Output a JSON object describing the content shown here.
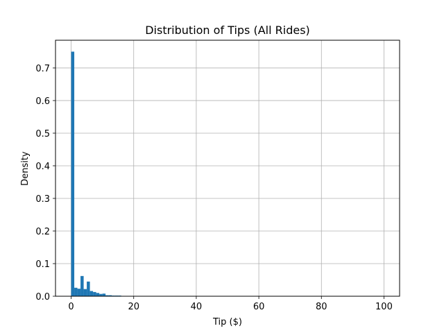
{
  "chart_data": {
    "type": "bar",
    "subtype": "histogram",
    "title": "Distribution of Tips (All Rides)",
    "xlabel": "Tip ($)",
    "ylabel": "Density",
    "xlim": [
      -5,
      105
    ],
    "ylim": [
      0,
      0.785
    ],
    "x_ticks": [
      0,
      20,
      40,
      60,
      80,
      100
    ],
    "y_ticks": [
      0.0,
      0.1,
      0.2,
      0.3,
      0.4,
      0.5,
      0.6,
      0.7
    ],
    "x_tick_labels": [
      "0",
      "20",
      "40",
      "60",
      "80",
      "100"
    ],
    "y_tick_labels": [
      "0.0",
      "0.1",
      "0.2",
      "0.3",
      "0.4",
      "0.5",
      "0.6",
      "0.7"
    ],
    "grid": true,
    "bin_width": 1,
    "bins": [
      {
        "x0": 0,
        "density": 0.75
      },
      {
        "x0": 1,
        "density": 0.026
      },
      {
        "x0": 2,
        "density": 0.023
      },
      {
        "x0": 3,
        "density": 0.062
      },
      {
        "x0": 4,
        "density": 0.022
      },
      {
        "x0": 5,
        "density": 0.045
      },
      {
        "x0": 6,
        "density": 0.016
      },
      {
        "x0": 7,
        "density": 0.013
      },
      {
        "x0": 8,
        "density": 0.01
      },
      {
        "x0": 9,
        "density": 0.007
      },
      {
        "x0": 10,
        "density": 0.008
      },
      {
        "x0": 11,
        "density": 0.003
      },
      {
        "x0": 12,
        "density": 0.003
      },
      {
        "x0": 13,
        "density": 0.002
      },
      {
        "x0": 14,
        "density": 0.002
      },
      {
        "x0": 15,
        "density": 0.002
      },
      {
        "x0": 16,
        "density": 0.0008
      },
      {
        "x0": 17,
        "density": 0.0005
      },
      {
        "x0": 18,
        "density": 0.0004
      }
    ],
    "colors": {
      "bar": "#1f77b4",
      "grid": "#b0b0b0"
    }
  }
}
